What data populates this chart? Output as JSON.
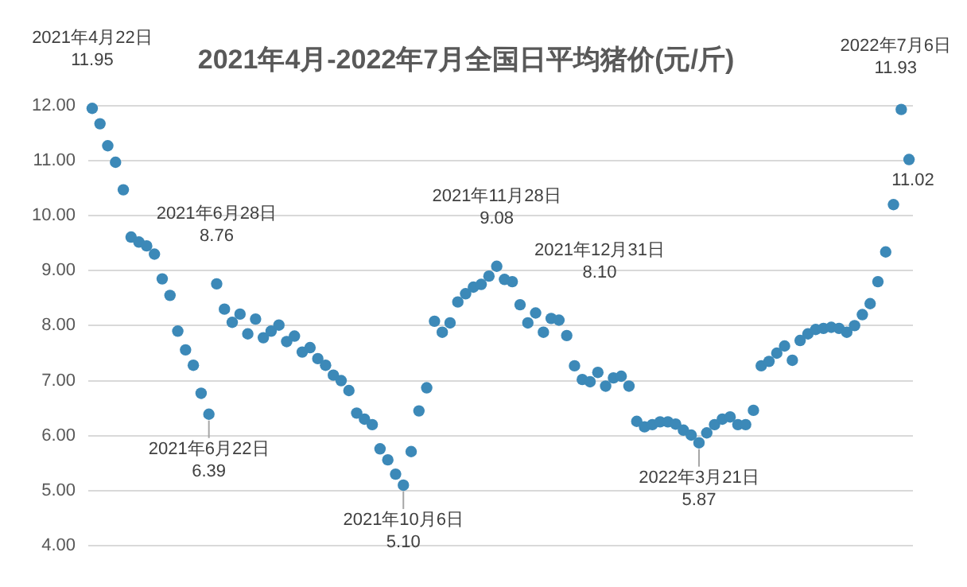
{
  "chart_data": {
    "type": "scatter",
    "title": "2021年4月-2022年7月全国日平均猪价(元/斤)",
    "categories": [
      null,
      null,
      null,
      null,
      null,
      null,
      null,
      null,
      null,
      null,
      null,
      null,
      null,
      null,
      null,
      null,
      null,
      null,
      null,
      null,
      null,
      null,
      null,
      null,
      null,
      null,
      null,
      null,
      null,
      null,
      null,
      null,
      null,
      null,
      null,
      null,
      null,
      null,
      null,
      null,
      null,
      null,
      null,
      null,
      null,
      null,
      null,
      null,
      null,
      null,
      null,
      null,
      null,
      null,
      null,
      null,
      null,
      null,
      null,
      null,
      null,
      null,
      null,
      null,
      null,
      null,
      null,
      null,
      null,
      null,
      null,
      null,
      null,
      null,
      null,
      null,
      null,
      null,
      null,
      null,
      null,
      null,
      null,
      null,
      null,
      null,
      null,
      null,
      null,
      null,
      null,
      null,
      null,
      null,
      null,
      null,
      null,
      null,
      null,
      null,
      null,
      null,
      null,
      null,
      null,
      null
    ],
    "series": [
      {
        "color": "#3c89b8",
        "values": [
          11.95,
          11.67,
          11.27,
          10.97,
          10.47,
          9.61,
          9.52,
          9.45,
          9.3,
          8.85,
          8.55,
          7.9,
          7.56,
          7.28,
          6.77,
          6.39,
          8.76,
          8.3,
          8.06,
          8.21,
          7.85,
          8.12,
          7.78,
          7.9,
          8.01,
          7.71,
          7.81,
          7.52,
          7.6,
          7.4,
          7.28,
          7.1,
          7.0,
          6.82,
          6.41,
          6.3,
          6.2,
          5.76,
          5.56,
          5.3,
          5.1,
          5.71,
          6.45,
          6.87,
          8.08,
          7.88,
          8.05,
          8.43,
          8.58,
          8.7,
          8.75,
          8.9,
          9.08,
          8.84,
          8.8,
          8.38,
          8.05,
          8.23,
          7.88,
          8.13,
          8.1,
          7.82,
          7.27,
          7.02,
          6.98,
          7.15,
          6.9,
          7.05,
          7.08,
          6.9,
          6.26,
          6.16,
          6.2,
          6.25,
          6.25,
          6.21,
          6.1,
          6.01,
          5.87,
          6.05,
          6.2,
          6.3,
          6.34,
          6.2,
          6.2,
          6.46,
          7.27,
          7.35,
          7.5,
          7.63,
          7.37,
          7.73,
          7.85,
          7.93,
          7.95,
          7.97,
          7.95,
          7.88,
          8.0,
          8.2,
          8.4,
          8.8,
          9.34,
          10.2,
          11.93,
          11.02
        ]
      }
    ],
    "ylim": [
      4,
      12
    ],
    "yticks": [
      {
        "value": 4,
        "label": "4.00"
      },
      {
        "value": 5,
        "label": "5.00"
      },
      {
        "value": 6,
        "label": "6.00"
      },
      {
        "value": 7,
        "label": "7.00"
      },
      {
        "value": 8,
        "label": "8.00"
      },
      {
        "value": 9,
        "label": "9.00"
      },
      {
        "value": 10,
        "label": "10.00"
      },
      {
        "value": 11,
        "label": "11.00"
      },
      {
        "value": 12,
        "label": "12.00"
      }
    ],
    "grid": "y",
    "marker": "circle",
    "legend": false,
    "tick_labels": "y",
    "annotations": [
      {
        "text": "2021年4月22日\n11.95",
        "y": 11.95
      },
      {
        "text": "2021年6月22日\n6.39",
        "y": 6.39
      },
      {
        "text": "2021年6月28日\n8.76",
        "y": 8.76
      },
      {
        "text": "2021年10月6日\n5.10",
        "y": 5.1
      },
      {
        "text": "2021年11月28日\n9.08",
        "y": 9.08
      },
      "2021年12月31日\n8.10",
      {
        "text": "2022年3月21日\n5.87",
        "y": 5.87
      },
      {
        "text": "2022年7月6日\n11.93",
        "y": 11.93
      },
      "11.02"
    ]
  }
}
